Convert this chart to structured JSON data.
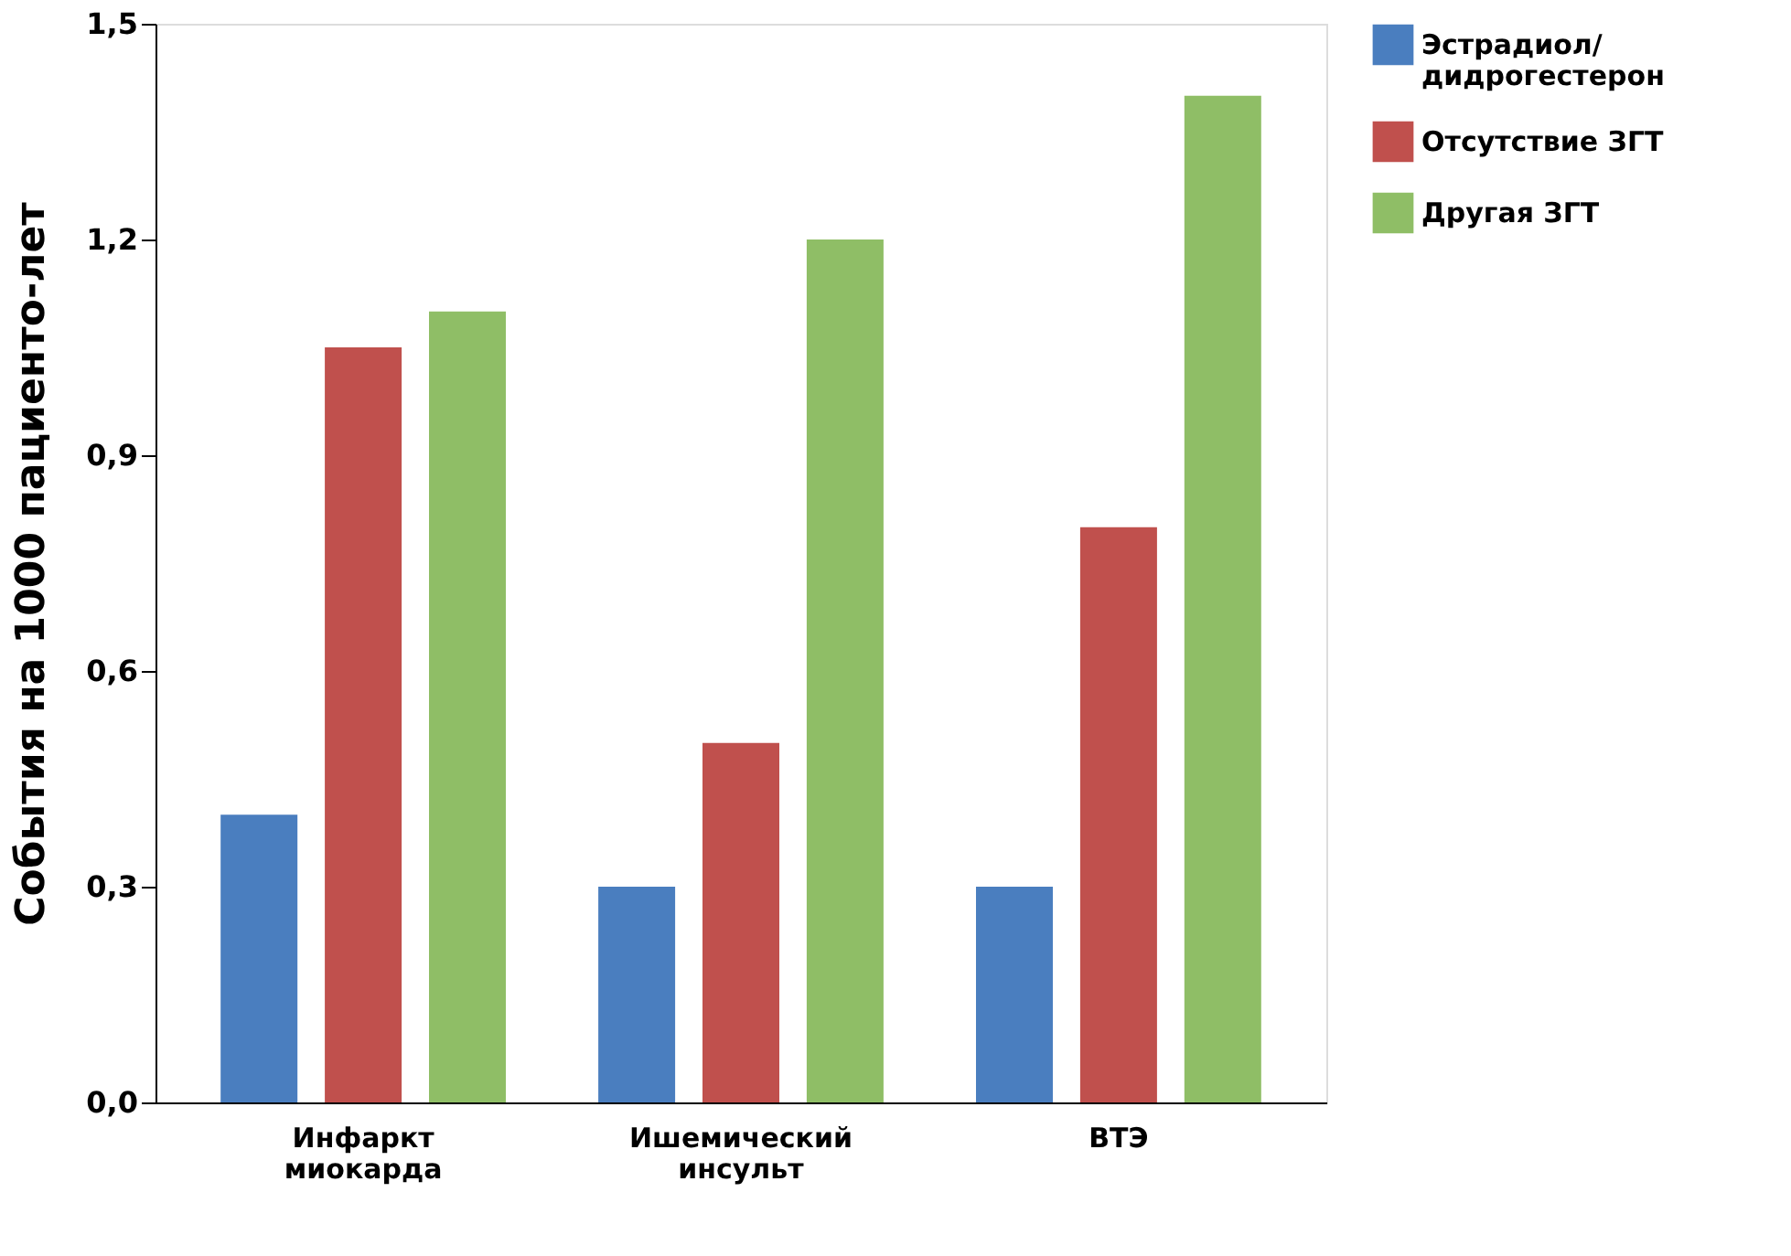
{
  "chart_data": {
    "type": "bar",
    "ylabel": "События на 1000 пациенто-лет",
    "categories": [
      "Инфаркт\nмиокарда",
      "Ишемический\nинсульт",
      "ВТЭ"
    ],
    "series": [
      {
        "name": "Эстрадиол/\nдидрогестерон",
        "color": "#4a7ebf",
        "values": [
          0.4,
          0.3,
          0.3
        ]
      },
      {
        "name": "Отсутствие ЗГТ",
        "color": "#c0504d",
        "values": [
          1.05,
          0.5,
          0.8
        ]
      },
      {
        "name": "Другая ЗГТ",
        "color": "#8fbe66",
        "values": [
          1.1,
          1.2,
          1.4
        ]
      }
    ],
    "ylim": [
      0,
      1.5
    ],
    "yticks": [
      {
        "value": 0,
        "label": "0,0"
      },
      {
        "value": 0.3,
        "label": "0,3"
      },
      {
        "value": 0.6,
        "label": "0,6"
      },
      {
        "value": 0.9,
        "label": "0,9"
      },
      {
        "value": 1.2,
        "label": "1,2"
      },
      {
        "value": 1.5,
        "label": "1,5"
      }
    ],
    "grid": false,
    "legend": "right"
  }
}
